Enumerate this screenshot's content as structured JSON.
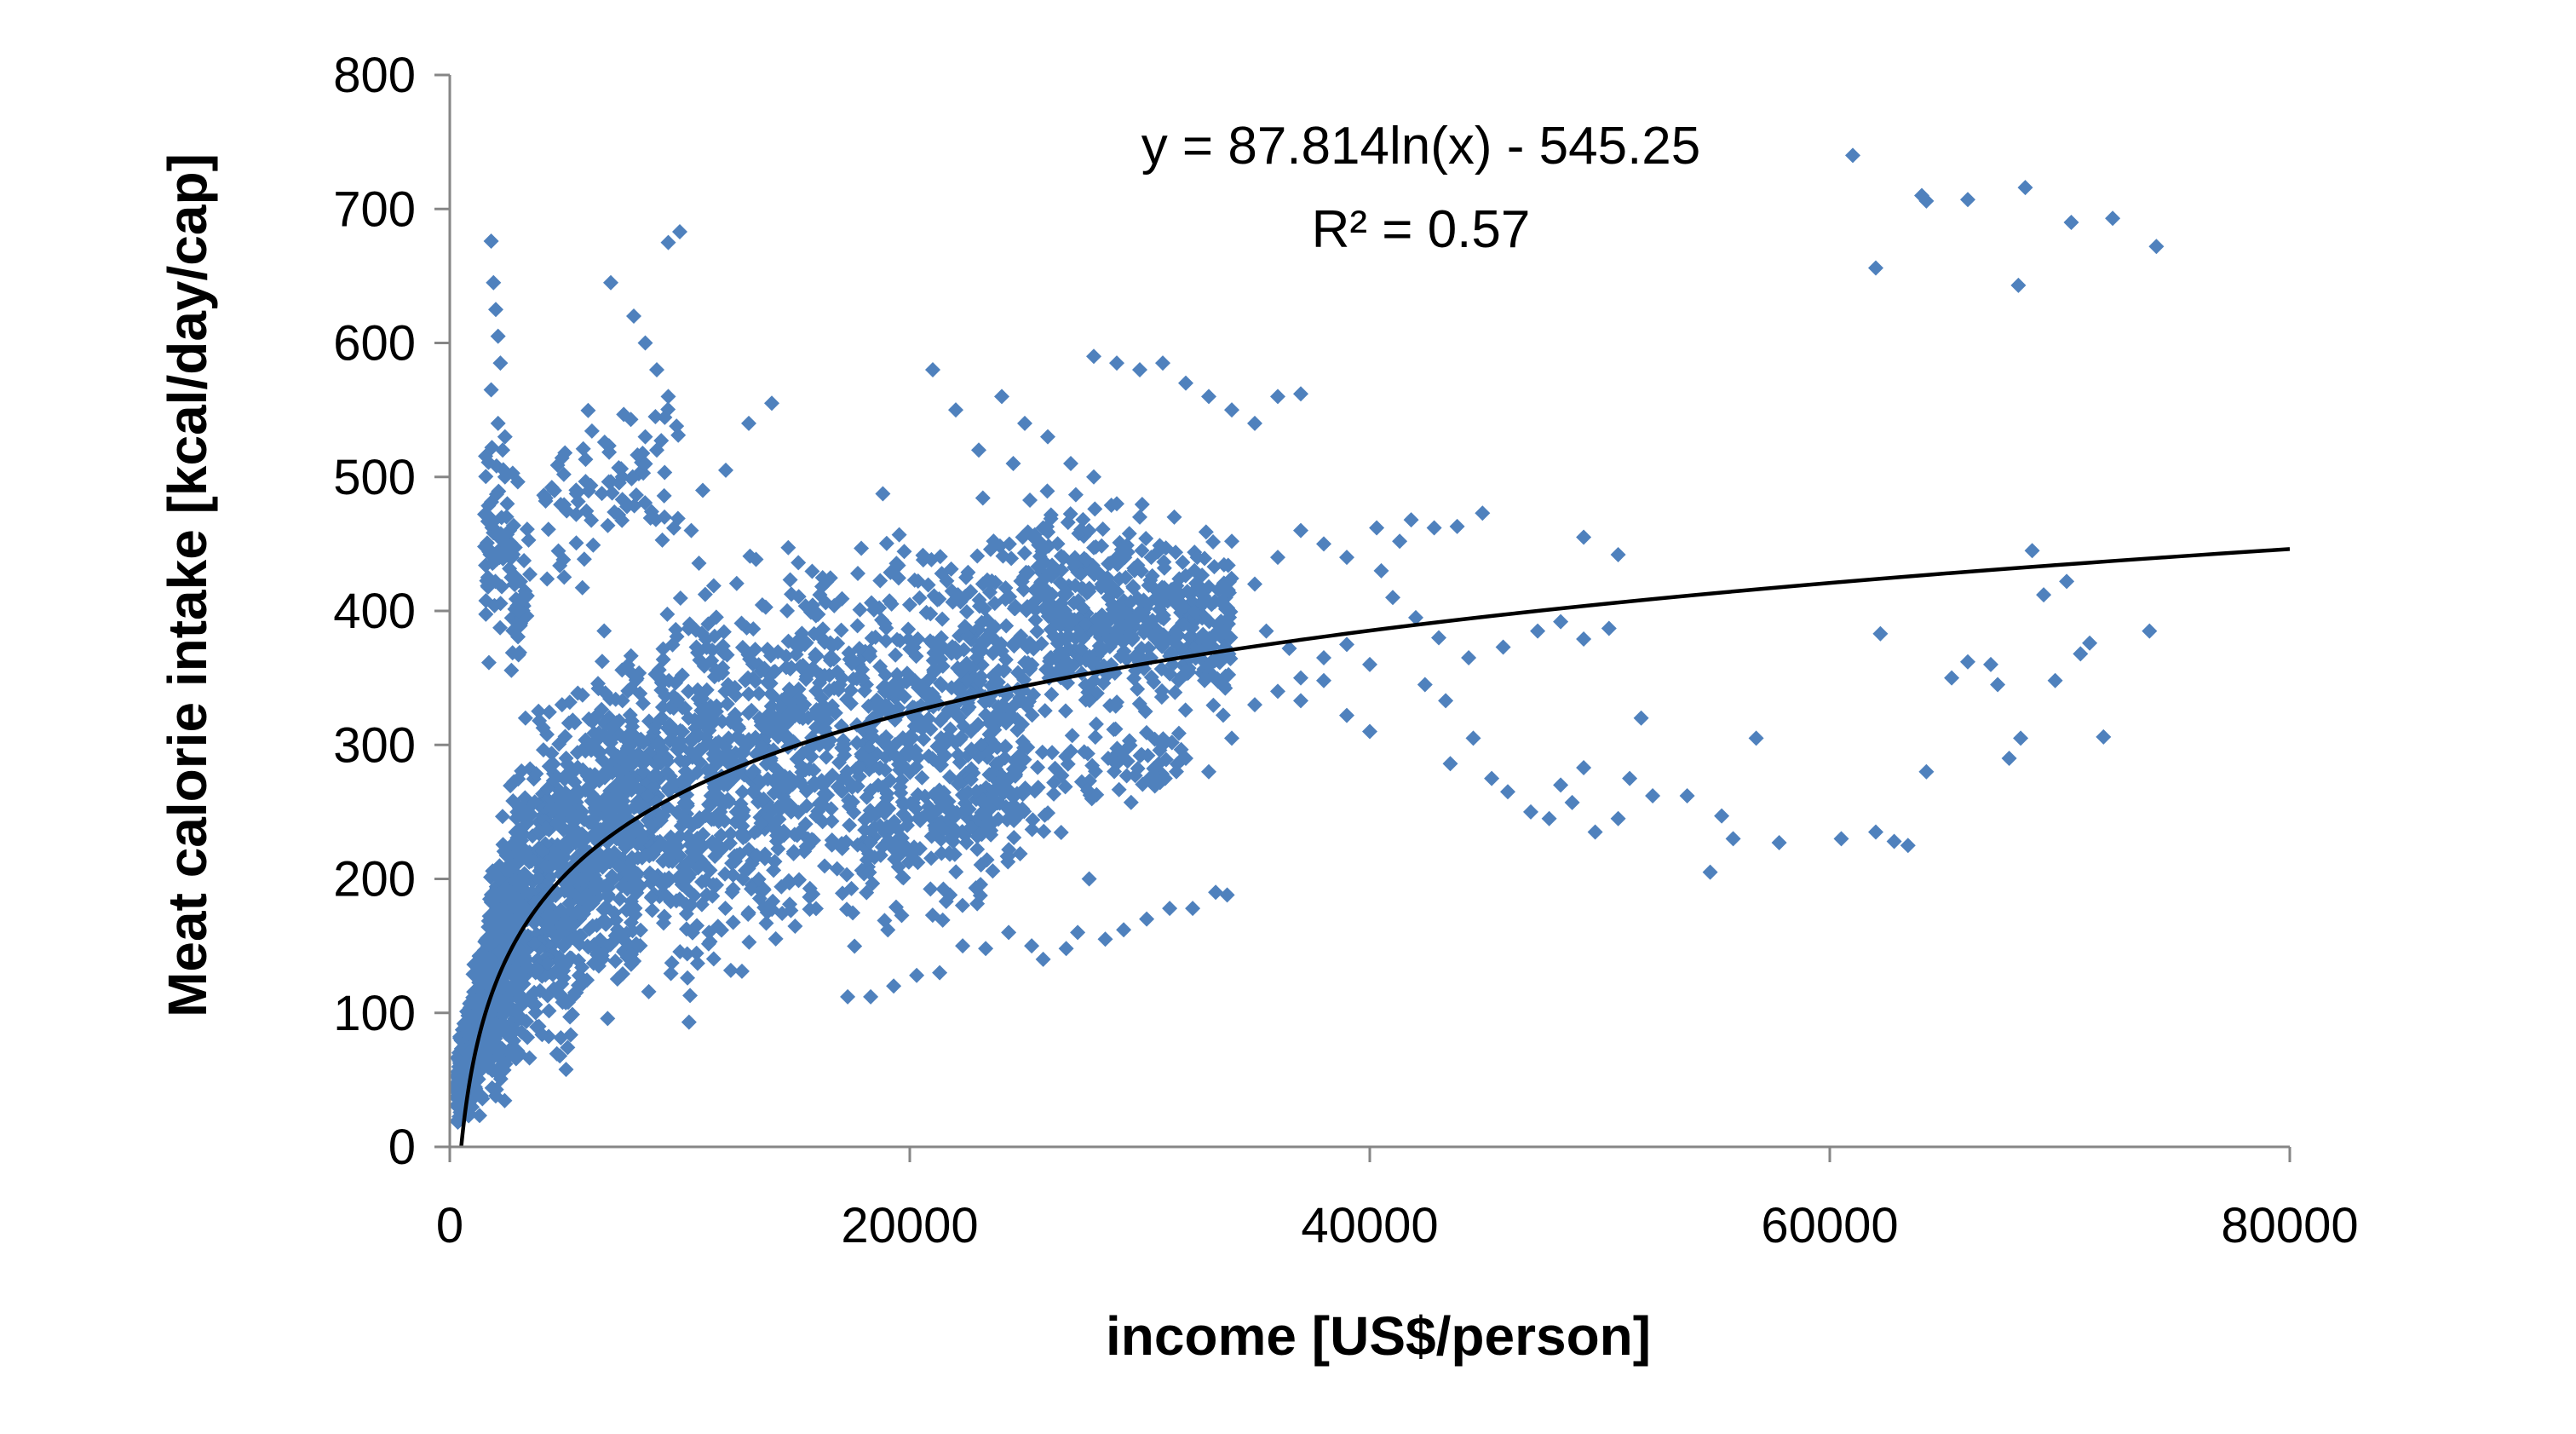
{
  "colors": {
    "marker": "#4F81BD",
    "axis": "#868686",
    "trendline": "#000000",
    "background": "#ffffff"
  },
  "chart_data": {
    "type": "scatter",
    "title": "",
    "xlabel": "income [US$/person]",
    "ylabel": "Meat calorie intake [kcal/day/cap]",
    "xlim": [
      0,
      80000
    ],
    "ylim": [
      0,
      800
    ],
    "xticks": [
      0,
      20000,
      40000,
      60000,
      80000
    ],
    "yticks": [
      0,
      100,
      200,
      300,
      400,
      500,
      600,
      700,
      800
    ],
    "xtick_labels": [
      "0",
      "20000",
      "40000",
      "60000",
      "80000"
    ],
    "ytick_labels": [
      "0",
      "100",
      "200",
      "300",
      "400",
      "500",
      "600",
      "700",
      "800"
    ],
    "grid": false,
    "legend": false,
    "marker": "diamond",
    "annotations": {
      "equation": "y = 87.814ln(x) - 545.25",
      "r_squared": "R² = 0.57"
    },
    "trendline": {
      "type": "logarithmic",
      "a": 87.814,
      "b": -545.25,
      "x_range": [
        500,
        80000
      ]
    },
    "series": [
      {
        "points": [
          [
            61000,
            740
          ],
          [
            64000,
            710
          ],
          [
            64200,
            706
          ],
          [
            66000,
            707
          ],
          [
            68500,
            716
          ],
          [
            70500,
            690
          ],
          [
            72300,
            693
          ],
          [
            74200,
            672
          ],
          [
            62000,
            656
          ],
          [
            68200,
            643
          ],
          [
            60500,
            230
          ],
          [
            62000,
            235
          ],
          [
            62800,
            228
          ],
          [
            63400,
            225
          ],
          [
            64200,
            280
          ],
          [
            65300,
            350
          ],
          [
            66000,
            362
          ],
          [
            67000,
            360
          ],
          [
            67300,
            345
          ],
          [
            67800,
            290
          ],
          [
            68300,
            305
          ],
          [
            68800,
            445
          ],
          [
            69300,
            412
          ],
          [
            69800,
            348
          ],
          [
            70300,
            422
          ],
          [
            70900,
            368
          ],
          [
            71300,
            376
          ],
          [
            71900,
            306
          ],
          [
            73900,
            385
          ],
          [
            62200,
            383
          ],
          [
            49300,
            455
          ],
          [
            50800,
            442
          ],
          [
            47300,
            385
          ],
          [
            48300,
            392
          ],
          [
            49300,
            379
          ],
          [
            50400,
            387
          ],
          [
            51800,
            320
          ],
          [
            52300,
            262
          ],
          [
            53800,
            262
          ],
          [
            54800,
            205
          ],
          [
            55800,
            230
          ],
          [
            56800,
            305
          ],
          [
            57800,
            227
          ],
          [
            55300,
            247
          ],
          [
            47800,
            245
          ],
          [
            48800,
            257
          ],
          [
            49800,
            235
          ],
          [
            50800,
            245
          ],
          [
            51300,
            275
          ],
          [
            49300,
            283
          ],
          [
            48300,
            270
          ],
          [
            43500,
            286
          ],
          [
            44500,
            305
          ],
          [
            45300,
            275
          ],
          [
            46000,
            265
          ],
          [
            47000,
            250
          ],
          [
            42400,
            345
          ],
          [
            43300,
            333
          ],
          [
            44300,
            365
          ],
          [
            45800,
            373
          ],
          [
            44900,
            473
          ],
          [
            43800,
            463
          ],
          [
            42800,
            462
          ],
          [
            41800,
            468
          ],
          [
            41300,
            452
          ],
          [
            40300,
            462
          ],
          [
            40000,
            310
          ],
          [
            39000,
            322
          ],
          [
            38000,
            348
          ],
          [
            37000,
            333
          ],
          [
            36500,
            372
          ],
          [
            35500,
            385
          ],
          [
            27800,
            200
          ],
          [
            28500,
            155
          ],
          [
            29300,
            162
          ],
          [
            30300,
            170
          ],
          [
            31300,
            178
          ],
          [
            32300,
            178
          ],
          [
            33300,
            190
          ],
          [
            33800,
            188
          ],
          [
            27300,
            160
          ],
          [
            26800,
            148
          ],
          [
            25800,
            140
          ],
          [
            25300,
            150
          ],
          [
            24300,
            160
          ],
          [
            23300,
            148
          ],
          [
            22300,
            150
          ],
          [
            21300,
            130
          ],
          [
            20300,
            128
          ],
          [
            19300,
            120
          ],
          [
            18300,
            112
          ],
          [
            17300,
            112
          ],
          [
            1800,
            676
          ],
          [
            1900,
            645
          ],
          [
            2000,
            625
          ],
          [
            2100,
            605
          ],
          [
            2200,
            585
          ],
          [
            1800,
            565
          ],
          [
            2100,
            540
          ],
          [
            2300,
            520
          ],
          [
            2400,
            500
          ],
          [
            2500,
            480
          ],
          [
            2600,
            460
          ],
          [
            2700,
            440
          ],
          [
            2800,
            420
          ],
          [
            3000,
            400
          ],
          [
            2400,
            530
          ],
          [
            7000,
            645
          ],
          [
            8000,
            620
          ],
          [
            8500,
            600
          ],
          [
            9000,
            580
          ],
          [
            9500,
            675
          ],
          [
            10000,
            683
          ],
          [
            9500,
            560
          ],
          [
            8500,
            530
          ],
          [
            7500,
            500
          ],
          [
            9000,
            520
          ],
          [
            14000,
            555
          ],
          [
            13000,
            540
          ],
          [
            12000,
            505
          ],
          [
            11000,
            490
          ],
          [
            10500,
            460
          ],
          [
            28000,
            590
          ],
          [
            29000,
            585
          ],
          [
            30000,
            580
          ],
          [
            31000,
            585
          ],
          [
            32000,
            570
          ],
          [
            33000,
            560
          ],
          [
            34000,
            550
          ],
          [
            35000,
            540
          ],
          [
            36000,
            560
          ],
          [
            37000,
            562
          ],
          [
            30000,
            470
          ],
          [
            30500,
            440
          ],
          [
            31500,
            470
          ],
          [
            32500,
            440
          ],
          [
            33000,
            418
          ],
          [
            34000,
            452
          ],
          [
            35000,
            420
          ],
          [
            36000,
            440
          ],
          [
            37000,
            460
          ],
          [
            38000,
            450
          ],
          [
            39000,
            440
          ],
          [
            40500,
            430
          ],
          [
            41000,
            410
          ],
          [
            42000,
            395
          ],
          [
            43000,
            380
          ],
          [
            31000,
            300
          ],
          [
            32000,
            290
          ],
          [
            33000,
            280
          ],
          [
            34000,
            305
          ],
          [
            35000,
            330
          ],
          [
            36000,
            340
          ],
          [
            37000,
            350
          ],
          [
            38000,
            365
          ],
          [
            39000,
            375
          ],
          [
            40000,
            360
          ],
          [
            24000,
            560
          ],
          [
            25000,
            540
          ],
          [
            26000,
            530
          ],
          [
            27000,
            510
          ],
          [
            28000,
            500
          ],
          [
            29000,
            480
          ],
          [
            21000,
            580
          ],
          [
            22000,
            550
          ],
          [
            23000,
            520
          ],
          [
            24500,
            510
          ]
        ],
        "cloud": [
          {
            "x": [
              300,
              3000
            ],
            "y_min_slope_start": 10,
            "y_min_slope_end": 20,
            "y_max_start": 80,
            "y_max_end": 330,
            "count": 700
          },
          {
            "x": [
              3000,
              8000
            ],
            "y_min_slope_start": 20,
            "y_min_slope_end": 70,
            "y_max_start": 330,
            "y_max_end": 430,
            "count": 700
          },
          {
            "x": [
              8000,
              15000
            ],
            "y_min_slope_start": 70,
            "y_min_slope_end": 100,
            "y_max_start": 430,
            "y_max_end": 500,
            "count": 600
          },
          {
            "x": [
              15000,
              25000
            ],
            "y_min_slope_start": 100,
            "y_min_slope_end": 150,
            "y_max_start": 500,
            "y_max_end": 520,
            "count": 700
          },
          {
            "x": [
              25000,
              34000
            ],
            "y_min_slope_start": 280,
            "y_min_slope_end": 300,
            "y_max_start": 520,
            "y_max_end": 480,
            "count": 500
          },
          {
            "x": [
              1500,
              3500
            ],
            "y_min_slope_start": 330,
            "y_min_slope_end": 330,
            "y_max_start": 560,
            "y_max_end": 500,
            "count": 90
          },
          {
            "x": [
              4000,
              10000
            ],
            "y_min_slope_start": 380,
            "y_min_slope_end": 420,
            "y_max_start": 560,
            "y_max_end": 600,
            "count": 80
          },
          {
            "x": [
              18000,
              32000
            ],
            "y_min_slope_start": 180,
            "y_min_slope_end": 260,
            "y_max_start": 300,
            "y_max_end": 330,
            "count": 160
          }
        ]
      }
    ]
  }
}
